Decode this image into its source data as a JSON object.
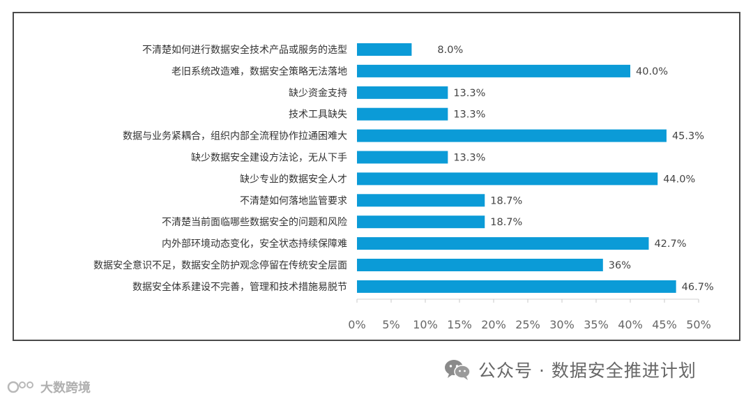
{
  "chart_data": {
    "type": "bar",
    "orientation": "horizontal",
    "categories": [
      "不清楚如何进行数据安全技术产品或服务的选型",
      "老旧系统改造难，数据安全策略无法落地",
      "缺少资金支持",
      "技术工具缺失",
      "数据与业务紧耦合，组织内部全流程协作拉通困难大",
      "缺少数据安全建设方法论，无从下手",
      "缺少专业的数据安全人才",
      "不清楚如何落地监管要求",
      "不清楚当前面临哪些数据安全的问题和风险",
      "内外部环境动态变化，安全状态持续保障难",
      "数据安全意识不足，数据安全防护观念停留在传统安全层面",
      "数据安全体系建设不完善，管理和技术措施易脱节"
    ],
    "values": [
      8.0,
      40.0,
      13.3,
      13.3,
      45.3,
      13.3,
      44.0,
      18.7,
      18.7,
      42.7,
      36,
      46.7
    ],
    "value_labels": [
      "8.0%",
      "40.0%",
      "13.3%",
      "13.3%",
      "45.3%",
      "13.3%",
      "44.0%",
      "18.7%",
      "18.7%",
      "42.7%",
      "36%",
      "46.7%"
    ],
    "xlim": [
      0,
      50
    ],
    "xticks": [
      "0%",
      "5%",
      "10%",
      "15%",
      "20%",
      "25%",
      "30%",
      "35%",
      "40%",
      "45%",
      "50%"
    ],
    "bar_color": "#0b9bd7",
    "grid": false,
    "legend": "none"
  },
  "watermark": {
    "wechat_text": "公众号 · 数据安全推进计划",
    "brand_text": "大数跨境"
  }
}
